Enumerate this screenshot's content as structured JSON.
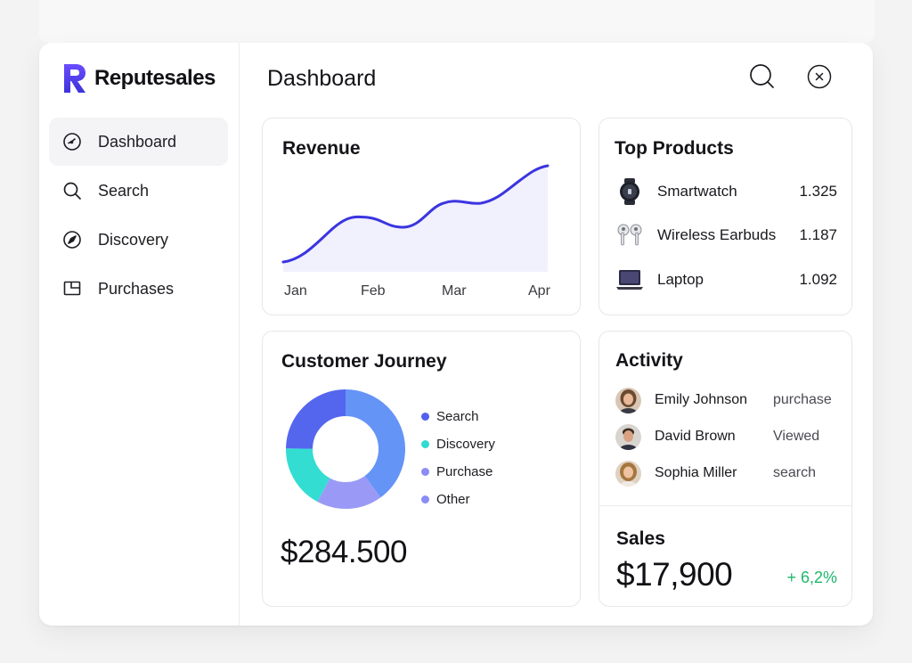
{
  "app": {
    "name": "Reputesales"
  },
  "sidebar": {
    "items": [
      {
        "label": "Dashboard",
        "icon": "gauge-icon",
        "active": true
      },
      {
        "label": "Search",
        "icon": "search-icon",
        "active": false
      },
      {
        "label": "Discovery",
        "icon": "compass-icon",
        "active": false
      },
      {
        "label": "Purchases",
        "icon": "receipt-icon",
        "active": false
      }
    ]
  },
  "header": {
    "title": "Dashboard",
    "actions": [
      "search-icon",
      "close-icon"
    ]
  },
  "revenue": {
    "title": "Revenue",
    "months": [
      "Jan",
      "Feb",
      "Mar",
      "Apr"
    ],
    "line_color": "#3b35e0",
    "fill_color": "#f1f0fd"
  },
  "top_products": {
    "title": "Top Products",
    "items": [
      {
        "name": "Smartwatch",
        "value": "1.325",
        "icon": "smartwatch-icon"
      },
      {
        "name": "Wireless Earbuds",
        "value": "1.187",
        "icon": "earbuds-icon"
      },
      {
        "name": "Laptop",
        "value": "1.092",
        "icon": "laptop-icon"
      }
    ]
  },
  "customer_journey": {
    "title": "Customer Journey",
    "total": "$284.500",
    "segments": [
      {
        "label": "Search",
        "color": "#5160ee"
      },
      {
        "label": "Discovery",
        "color": "#32d9cf"
      },
      {
        "label": "Purchase",
        "color": "#8b8cf5"
      },
      {
        "label": "Other",
        "color": "#8b8cf5"
      }
    ],
    "donut_colors": {
      "search": "#5566ee",
      "other": "#6594f7",
      "purchase": "#9a9af6",
      "discovery": "#34ddd2"
    }
  },
  "activity": {
    "title": "Activity",
    "items": [
      {
        "name": "Emily Johnson",
        "action": "purchase"
      },
      {
        "name": "David Brown",
        "action": "Viewed"
      },
      {
        "name": "Sophia Miller",
        "action": "search"
      }
    ]
  },
  "sales": {
    "title": "Sales",
    "value": "$17,900",
    "change": "+ 6,2%",
    "change_color": "#1fb86a"
  }
}
